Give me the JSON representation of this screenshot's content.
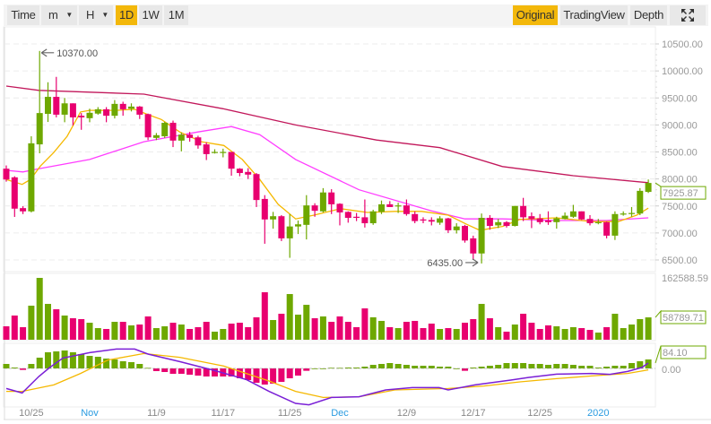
{
  "toolbar": {
    "time": "Time",
    "minute": "m",
    "hour": "H",
    "intervals": [
      "1D",
      "1W",
      "1M"
    ],
    "active_interval": "1D",
    "views": [
      "Original",
      "TradingView",
      "Depth"
    ],
    "active_view": "Original",
    "fullscreen_icon": "expand-icon"
  },
  "colors": {
    "up": "#6ea800",
    "down": "#e8006f",
    "ma_short": "#f5b800",
    "ma_mid": "#ff3dff",
    "ma_long": "#c2185b",
    "dif": "#7a1fd6",
    "dea": "#f5b800",
    "accent": "#f3b80b"
  },
  "chart_data": {
    "type": "candlestick",
    "price_axis": {
      "ticks": [
        "10500.00",
        "10000.00",
        "9500.00",
        "9000.00",
        "8500.00",
        "8000.00",
        "7500.00",
        "7000.00",
        "6500.00"
      ],
      "range": [
        6500,
        10500
      ]
    },
    "date_labels": [
      {
        "i": 3,
        "label": "10/25",
        "highlight": false
      },
      {
        "i": 10,
        "label": "Nov",
        "highlight": true
      },
      {
        "i": 18,
        "label": "11/9",
        "highlight": false
      },
      {
        "i": 26,
        "label": "11/17",
        "highlight": false
      },
      {
        "i": 34,
        "label": "11/25",
        "highlight": false
      },
      {
        "i": 40,
        "label": "Dec",
        "highlight": true
      },
      {
        "i": 48,
        "label": "12/9",
        "highlight": false
      },
      {
        "i": 56,
        "label": "12/17",
        "highlight": false
      },
      {
        "i": 64,
        "label": "12/25",
        "highlight": false
      },
      {
        "i": 71,
        "label": "2020",
        "highlight": true
      }
    ],
    "high_annotation": {
      "i": 4,
      "value": 10370,
      "label": "10370.00"
    },
    "low_annotation": {
      "i": 57,
      "value": 6435,
      "label": "6435.00"
    },
    "last_price_label": "7925.87",
    "ohlc": [
      [
        8190,
        8250,
        7950,
        7990
      ],
      [
        8030,
        8050,
        7297,
        7450
      ],
      [
        7460,
        7495,
        7350,
        7400
      ],
      [
        7400,
        8790,
        7380,
        8660
      ],
      [
        8640,
        10370,
        8475,
        9220
      ],
      [
        9205,
        9790,
        9055,
        9520
      ],
      [
        9520,
        9890,
        9140,
        9190
      ],
      [
        9190,
        9500,
        9050,
        9400
      ],
      [
        9400,
        9400,
        8990,
        9140
      ],
      [
        9170,
        9220,
        8910,
        9140
      ],
      [
        9125,
        9300,
        9050,
        9225
      ],
      [
        9210,
        9330,
        9190,
        9290
      ],
      [
        9290,
        9330,
        9050,
        9170
      ],
      [
        9170,
        9460,
        9120,
        9390
      ],
      [
        9390,
        9430,
        9170,
        9290
      ],
      [
        9300,
        9400,
        9250,
        9340
      ],
      [
        9340,
        9350,
        9110,
        9190
      ],
      [
        9200,
        9210,
        8720,
        8770
      ],
      [
        8760,
        8850,
        8720,
        8810
      ],
      [
        8790,
        9060,
        8760,
        9040
      ],
      [
        9040,
        9080,
        8590,
        8710
      ],
      [
        8710,
        8860,
        8510,
        8820
      ],
      [
        8820,
        8870,
        8690,
        8760
      ],
      [
        8770,
        8800,
        8560,
        8620
      ],
      [
        8640,
        8680,
        8350,
        8460
      ],
      [
        8490,
        8550,
        8470,
        8500
      ],
      [
        8480,
        8560,
        8400,
        8500
      ],
      [
        8500,
        8500,
        8060,
        8190
      ],
      [
        8190,
        8200,
        8050,
        8110
      ],
      [
        8130,
        8200,
        8000,
        8080
      ],
      [
        8090,
        8110,
        7480,
        7610
      ],
      [
        7630,
        7700,
        6800,
        7250
      ],
      [
        7250,
        7390,
        7080,
        7310
      ],
      [
        7310,
        7330,
        6850,
        6900
      ],
      [
        6900,
        7350,
        6540,
        7120
      ],
      [
        7120,
        7230,
        6980,
        7160
      ],
      [
        7150,
        7700,
        6880,
        7510
      ],
      [
        7510,
        7550,
        7300,
        7410
      ],
      [
        7400,
        7830,
        7380,
        7750
      ],
      [
        7750,
        7810,
        7350,
        7530
      ],
      [
        7540,
        7550,
        7140,
        7380
      ],
      [
        7390,
        7400,
        7190,
        7280
      ],
      [
        7300,
        7370,
        7220,
        7280
      ],
      [
        7290,
        7620,
        7100,
        7180
      ],
      [
        7180,
        7430,
        7150,
        7400
      ],
      [
        7390,
        7600,
        7350,
        7530
      ],
      [
        7530,
        7590,
        7480,
        7480
      ],
      [
        7490,
        7560,
        7370,
        7510
      ],
      [
        7510,
        7620,
        7320,
        7350
      ],
      [
        7350,
        7400,
        7180,
        7220
      ],
      [
        7250,
        7290,
        7180,
        7230
      ],
      [
        7240,
        7290,
        7140,
        7210
      ],
      [
        7190,
        7310,
        7150,
        7270
      ],
      [
        7270,
        7280,
        7000,
        7050
      ],
      [
        7050,
        7180,
        6990,
        7120
      ],
      [
        7130,
        7150,
        6820,
        6860
      ],
      [
        6900,
        6950,
        6500,
        6620
      ],
      [
        6620,
        7360,
        6435,
        7280
      ],
      [
        7280,
        7330,
        7060,
        7130
      ],
      [
        7140,
        7260,
        7090,
        7200
      ],
      [
        7200,
        7220,
        7100,
        7130
      ],
      [
        7130,
        7500,
        7120,
        7500
      ],
      [
        7500,
        7650,
        7220,
        7290
      ],
      [
        7310,
        7380,
        7090,
        7260
      ],
      [
        7270,
        7350,
        7160,
        7200
      ],
      [
        7230,
        7400,
        7150,
        7200
      ],
      [
        7200,
        7300,
        7080,
        7270
      ],
      [
        7260,
        7380,
        7250,
        7320
      ],
      [
        7300,
        7520,
        7280,
        7400
      ],
      [
        7400,
        7400,
        7240,
        7250
      ],
      [
        7260,
        7330,
        7140,
        7180
      ],
      [
        7180,
        7260,
        7160,
        7200
      ],
      [
        7200,
        7210,
        6900,
        6950
      ],
      [
        6950,
        7400,
        6870,
        7350
      ],
      [
        7340,
        7400,
        7320,
        7360
      ],
      [
        7350,
        7480,
        7300,
        7370
      ],
      [
        7360,
        7830,
        7330,
        7780
      ],
      [
        7760,
        7990,
        7740,
        7925.87
      ]
    ],
    "ma_short": [
      [
        0,
        7990
      ],
      [
        1.9,
        7900
      ],
      [
        2.9,
        7990
      ],
      [
        4.1,
        8240
      ],
      [
        5.7,
        8490
      ],
      [
        7.3,
        8790
      ],
      [
        8.9,
        9240
      ],
      [
        10,
        9270
      ],
      [
        13.2,
        9270
      ],
      [
        15.4,
        9290
      ],
      [
        17,
        9190
      ],
      [
        18.6,
        9100
      ],
      [
        20.8,
        8870
      ],
      [
        23.4,
        8690
      ],
      [
        26.1,
        8620
      ],
      [
        28.3,
        8360
      ],
      [
        30.4,
        7990
      ],
      [
        32.6,
        7530
      ],
      [
        34.7,
        7260
      ],
      [
        36.9,
        7330
      ],
      [
        40.1,
        7450
      ],
      [
        43.3,
        7380
      ],
      [
        46.6,
        7400
      ],
      [
        49.8,
        7400
      ],
      [
        53,
        7330
      ],
      [
        55.2,
        7160
      ],
      [
        56.8,
        7050
      ],
      [
        59.5,
        7120
      ],
      [
        61.6,
        7250
      ],
      [
        66,
        7280
      ],
      [
        70.2,
        7210
      ],
      [
        73.4,
        7210
      ],
      [
        75.6,
        7330
      ],
      [
        77,
        7460
      ]
    ],
    "ma_mid": [
      [
        0,
        8160
      ],
      [
        2,
        8130
      ],
      [
        3.9,
        8190
      ],
      [
        10,
        8360
      ],
      [
        16.5,
        8690
      ],
      [
        23,
        8870
      ],
      [
        27,
        8970
      ],
      [
        30.4,
        8820
      ],
      [
        34.7,
        8360
      ],
      [
        42.3,
        7800
      ],
      [
        51,
        7410
      ],
      [
        55,
        7260
      ],
      [
        59.5,
        7260
      ],
      [
        66,
        7230
      ],
      [
        72,
        7230
      ],
      [
        77,
        7280
      ]
    ],
    "ma_long": [
      [
        0,
        9720
      ],
      [
        3.9,
        9640
      ],
      [
        16.5,
        9570
      ],
      [
        26,
        9300
      ],
      [
        34.7,
        9000
      ],
      [
        44.4,
        8720
      ],
      [
        52,
        8580
      ],
      [
        59.5,
        8230
      ],
      [
        68,
        8060
      ],
      [
        77,
        7930
      ]
    ],
    "volume": {
      "max_label": "162588.59",
      "last_label": "58789.71",
      "max": 162588.59,
      "values": [
        35300,
        63600,
        33000,
        89500,
        162588.59,
        94200,
        80100,
        63600,
        56500,
        54200,
        44700,
        30600,
        28300,
        47100,
        47100,
        37700,
        40000,
        61200,
        30600,
        35300,
        44700,
        40000,
        28300,
        33000,
        47100,
        21200,
        28300,
        42400,
        44700,
        33000,
        58900,
        124800,
        51800,
        68300,
        120100,
        65900,
        91800,
        56500,
        61200,
        47100,
        61200,
        47100,
        33000,
        82400,
        58900,
        49500,
        33000,
        30600,
        47100,
        49500,
        30600,
        42400,
        28300,
        30600,
        28300,
        44700,
        54200,
        94200,
        56500,
        33000,
        21200,
        40000,
        68300,
        44700,
        28300,
        37700,
        35300,
        28300,
        33000,
        30600,
        25900,
        18800,
        33000,
        68300,
        30600,
        40000,
        54200,
        58789.71
      ]
    },
    "macd": {
      "last_label": "84.10",
      "zero_label": "0.00",
      "histogram": [
        70,
        14,
        -23,
        70,
        168,
        252,
        266,
        280,
        252,
        224,
        196,
        182,
        154,
        140,
        112,
        98,
        70,
        9,
        -42,
        -56,
        -84,
        -84,
        -98,
        -112,
        -126,
        -126,
        -126,
        -126,
        -154,
        -182,
        -224,
        -252,
        -238,
        -210,
        -154,
        -112,
        -37,
        0,
        0,
        10,
        9,
        14,
        14,
        28,
        56,
        70,
        84,
        70,
        56,
        42,
        42,
        42,
        28,
        28,
        0,
        -37,
        14,
        28,
        42,
        56,
        84,
        84,
        84,
        70,
        70,
        56,
        70,
        70,
        56,
        42,
        42,
        14,
        28,
        42,
        42,
        84,
        112,
        140
      ],
      "dif": [
        [
          0,
          -313
        ],
        [
          1.9,
          -383
        ],
        [
          3.9,
          -126
        ],
        [
          5.2,
          14
        ],
        [
          6.8,
          163
        ],
        [
          10,
          247
        ],
        [
          13.2,
          303
        ],
        [
          15.4,
          303
        ],
        [
          17,
          224
        ],
        [
          20.8,
          107
        ],
        [
          25,
          -33
        ],
        [
          28.8,
          -173
        ],
        [
          31.5,
          -359
        ],
        [
          34.7,
          -546
        ],
        [
          36.3,
          -569
        ],
        [
          39,
          -453
        ],
        [
          42.3,
          -443
        ],
        [
          45.5,
          -336
        ],
        [
          48.7,
          -299
        ],
        [
          51.9,
          -299
        ],
        [
          53,
          -336
        ],
        [
          56.2,
          -257
        ],
        [
          60.5,
          -182
        ],
        [
          62.7,
          -140
        ],
        [
          66,
          -89
        ],
        [
          70.2,
          -79
        ],
        [
          72.4,
          -93
        ],
        [
          74.5,
          -47
        ],
        [
          76.2,
          14
        ],
        [
          77,
          84.1
        ]
      ],
      "dea": [
        [
          0,
          -359
        ],
        [
          1.9,
          -359
        ],
        [
          5.7,
          -257
        ],
        [
          8.9,
          -79
        ],
        [
          12.2,
          131
        ],
        [
          16.5,
          233
        ],
        [
          20.8,
          173
        ],
        [
          26.1,
          37
        ],
        [
          31.5,
          -196
        ],
        [
          34.7,
          -359
        ],
        [
          38,
          -453
        ],
        [
          42.3,
          -443
        ],
        [
          46.6,
          -336
        ],
        [
          53,
          -313
        ],
        [
          57.3,
          -275
        ],
        [
          61.6,
          -210
        ],
        [
          66,
          -159
        ],
        [
          70.2,
          -117
        ],
        [
          74.5,
          -79
        ],
        [
          77,
          -23
        ]
      ]
    }
  }
}
